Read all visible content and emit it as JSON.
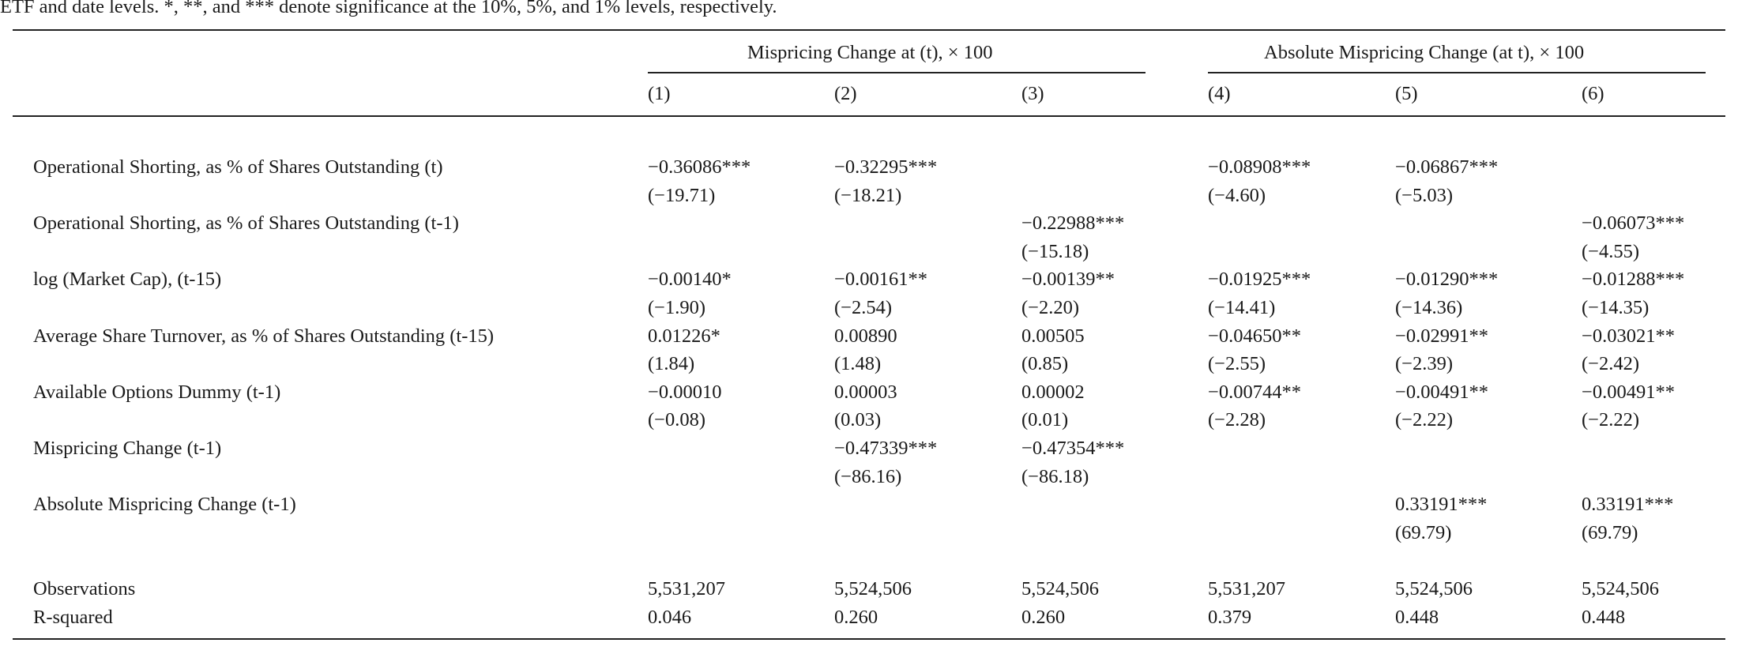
{
  "caption": "ETF and date levels. *, **, and *** denote significance at the 10%, 5%, and 1% levels, respectively.",
  "table": {
    "group_headers": [
      "Mispricing Change at (t), × 100",
      "Absolute Mispricing Change (at t), × 100"
    ],
    "column_numbers": [
      "(1)",
      "(2)",
      "(3)",
      "(4)",
      "(5)",
      "(6)"
    ],
    "rows": [
      {
        "label": "Operational Shorting, as % of Shares Outstanding (t)",
        "coef": [
          "−0.36086***",
          "−0.32295***",
          "",
          "−0.08908***",
          "−0.06867***",
          ""
        ],
        "tstat": [
          "(−19.71)",
          "(−18.21)",
          "",
          "(−4.60)",
          "(−5.03)",
          ""
        ]
      },
      {
        "label": "Operational Shorting, as % of Shares Outstanding (t-1)",
        "coef": [
          "",
          "",
          "−0.22988***",
          "",
          "",
          "−0.06073***"
        ],
        "tstat": [
          "",
          "",
          "(−15.18)",
          "",
          "",
          "(−4.55)"
        ]
      },
      {
        "label": "log (Market Cap), (t-15)",
        "coef": [
          "−0.00140*",
          "−0.00161**",
          "−0.00139**",
          "−0.01925***",
          "−0.01290***",
          "−0.01288***"
        ],
        "tstat": [
          "(−1.90)",
          "(−2.54)",
          "(−2.20)",
          "(−14.41)",
          "(−14.36)",
          "(−14.35)"
        ]
      },
      {
        "label": "Average Share Turnover, as % of Shares Outstanding (t-15)",
        "coef": [
          "0.01226*",
          "0.00890",
          "0.00505",
          "−0.04650**",
          "−0.02991**",
          "−0.03021**"
        ],
        "tstat": [
          "(1.84)",
          "(1.48)",
          "(0.85)",
          "(−2.55)",
          "(−2.39)",
          "(−2.42)"
        ]
      },
      {
        "label": "Available Options Dummy (t-1)",
        "coef": [
          "−0.00010",
          "0.00003",
          "0.00002",
          "−0.00744**",
          "−0.00491**",
          "−0.00491**"
        ],
        "tstat": [
          "(−0.08)",
          "(0.03)",
          "(0.01)",
          "(−2.28)",
          "(−2.22)",
          "(−2.22)"
        ]
      },
      {
        "label": "Mispricing Change (t-1)",
        "coef": [
          "",
          "−0.47339***",
          "−0.47354***",
          "",
          "",
          ""
        ],
        "tstat": [
          "",
          "(−86.16)",
          "(−86.18)",
          "",
          "",
          ""
        ]
      },
      {
        "label": "Absolute Mispricing Change (t-1)",
        "coef": [
          "",
          "",
          "",
          "",
          "0.33191***",
          "0.33191***"
        ],
        "tstat": [
          "",
          "",
          "",
          "",
          "(69.79)",
          "(69.79)"
        ]
      }
    ],
    "stats": [
      {
        "label": "Observations",
        "values": [
          "5,531,207",
          "5,524,506",
          "5,524,506",
          "5,531,207",
          "5,524,506",
          "5,524,506"
        ]
      },
      {
        "label": "R-squared",
        "values": [
          "0.046",
          "0.260",
          "0.260",
          "0.379",
          "0.448",
          "0.448"
        ]
      }
    ]
  }
}
